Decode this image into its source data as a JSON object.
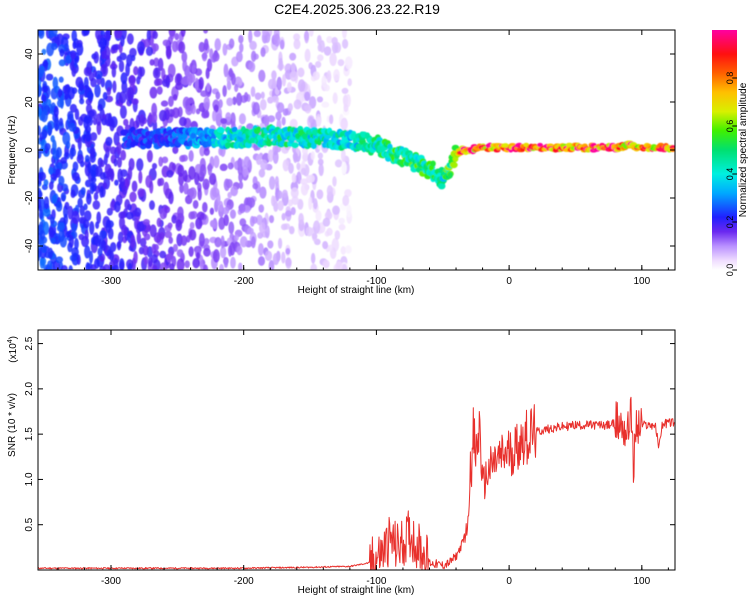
{
  "title": "C2E4.2025.306.23.22.R19",
  "chart_data": [
    {
      "type": "heatmap",
      "name": "spectrogram",
      "xlabel": "Height of straight line (km)",
      "ylabel": "Frequency (Hz)",
      "xlim": [
        -355,
        125
      ],
      "ylim": [
        -50,
        50
      ],
      "xticks": [
        -300,
        -200,
        -100,
        0,
        100
      ],
      "yticks": [
        -40,
        -20,
        0,
        20,
        40
      ],
      "colorbar": {
        "label": "Normalized spectral amplitude",
        "range": [
          0,
          1
        ],
        "ticks": [
          "0.0",
          "0.2",
          "0.4",
          "0.6",
          "0.8"
        ],
        "tick_values": [
          0.0,
          0.2,
          0.4,
          0.6,
          0.8
        ]
      },
      "ridge": {
        "x": [
          -300,
          -250,
          -210,
          -180,
          -150,
          -120,
          -100,
          -80,
          -60,
          -50,
          -45,
          -40,
          -35,
          -30,
          -20,
          0,
          50,
          80,
          90,
          100,
          125
        ],
        "frequency": [
          5,
          5,
          5,
          6,
          5,
          4,
          2,
          -3,
          -8,
          -12,
          -8,
          -2,
          0,
          0,
          1,
          1,
          1,
          1,
          2,
          1,
          1
        ],
        "amplitude": [
          0.25,
          0.28,
          0.45,
          0.5,
          0.48,
          0.45,
          0.5,
          0.55,
          0.55,
          0.5,
          0.6,
          0.8,
          0.9,
          0.9,
          0.95,
          0.95,
          0.95,
          0.95,
          0.9,
          0.9,
          0.9
        ]
      },
      "noise_region_km": [
        -355,
        -120
      ]
    },
    {
      "type": "line",
      "name": "snr",
      "xlabel": "Height of straight line (km)",
      "ylabel": "SNR (10 * v/v)",
      "ymultiplier": "(x10",
      "ymultiplier_exp": "4",
      "ymultiplier_close": ")",
      "xlim": [
        -355,
        125
      ],
      "ylim": [
        0,
        2.65
      ],
      "xticks": [
        -300,
        -200,
        -100,
        0,
        100
      ],
      "yticks": [
        0.5,
        1.0,
        1.5,
        2.0,
        2.5
      ],
      "ytick_labels": [
        "0.5",
        "1.0",
        "1.5",
        "2.0",
        "2.5"
      ],
      "color": "#e8302c",
      "series": [
        {
          "name": "SNR",
          "x": [
            -355,
            -300,
            -250,
            -200,
            -150,
            -120,
            -105,
            -95,
            -90,
            -85,
            -80,
            -75,
            -70,
            -65,
            -60,
            -50,
            -45,
            -40,
            -35,
            -31,
            -30,
            -29,
            -28,
            -27,
            -25,
            -22,
            -20,
            -18,
            -15,
            -10,
            -5,
            0,
            5,
            10,
            20,
            30,
            40,
            50,
            60,
            70,
            75,
            80,
            85,
            88,
            90,
            91,
            92,
            93,
            94,
            95,
            97,
            100,
            105,
            110,
            113,
            115,
            120,
            125
          ],
          "y": [
            0.02,
            0.02,
            0.02,
            0.02,
            0.03,
            0.04,
            0.08,
            0.2,
            0.35,
            0.25,
            0.3,
            0.4,
            0.3,
            0.2,
            0.08,
            0.05,
            0.08,
            0.15,
            0.3,
            0.5,
            0.9,
            1.3,
            1.1,
            1.5,
            1.25,
            1.6,
            0.9,
            1.0,
            1.1,
            1.2,
            1.25,
            1.3,
            1.35,
            1.45,
            1.52,
            1.56,
            1.58,
            1.6,
            1.6,
            1.6,
            1.6,
            1.62,
            1.6,
            1.55,
            1.5,
            1.75,
            1.9,
            1.35,
            0.9,
            1.6,
            1.55,
            1.6,
            1.6,
            1.6,
            1.35,
            1.6,
            1.63,
            1.63
          ]
        }
      ]
    }
  ]
}
